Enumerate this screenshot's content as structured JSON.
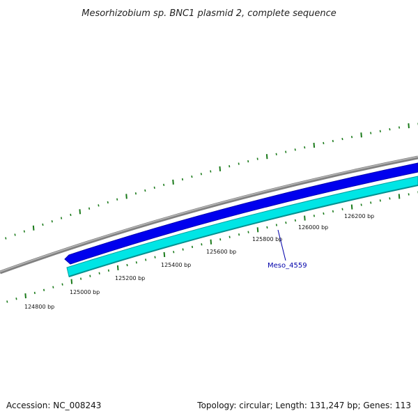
{
  "title": "Mesorhizobium sp. BNC1 plasmid 2, complete sequence",
  "footer": {
    "accession": "Accession: NC_008243",
    "summary": "Topology: circular; Length: 131,247 bp; Genes: 113"
  },
  "colors": {
    "backbone": "#808080",
    "backbone_light": "#b8b8b8",
    "gene_forward": "#0000ee",
    "gene_reverse": "#00e5e5",
    "gene_reverse_edge": "#00a0a0",
    "tick": "#1a7a1a",
    "label_line": "#0000aa"
  },
  "scale": {
    "labels": [
      "124800 bp",
      "125000 bp",
      "125200 bp",
      "125400 bp",
      "125600 bp",
      "125800 bp",
      "126000 bp",
      "126200 bp"
    ]
  },
  "genes": [
    {
      "name": "Meso_4559",
      "strand": "reverse"
    },
    {
      "name": "",
      "strand": "forward"
    }
  ]
}
